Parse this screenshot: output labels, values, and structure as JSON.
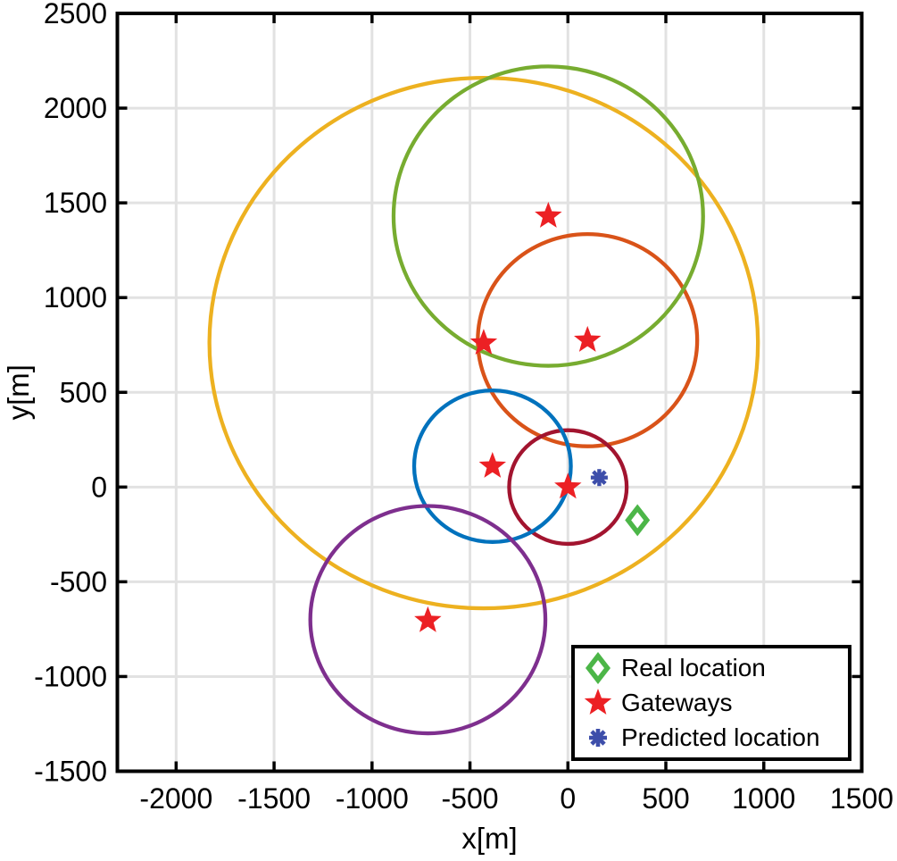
{
  "figure": {
    "background": "#FFFFFF",
    "grid_color": "#E2E2E2",
    "axis_color": "#000000"
  },
  "chart_data": {
    "type": "scatter",
    "title": "",
    "xlabel": "x[m]",
    "ylabel": "y[m]",
    "xlim": [
      -2300,
      1500
    ],
    "ylim": [
      -1500,
      2500
    ],
    "x_ticks": [
      -2000,
      -1500,
      -1000,
      -500,
      0,
      500,
      1000,
      1500
    ],
    "y_ticks": [
      -1500,
      -1000,
      -500,
      0,
      500,
      1000,
      1500,
      2000,
      2500
    ],
    "grid": true,
    "legend_position": "bottom-right",
    "gateway_circles": [
      {
        "cx": -430,
        "cy": 760,
        "r": 1400,
        "color": "#EDB120",
        "name": "yellow-range-circle"
      },
      {
        "cx": 100,
        "cy": 775,
        "r": 560,
        "color": "#D95319",
        "name": "orange-range-circle"
      },
      {
        "cx": -100,
        "cy": 1430,
        "r": 790,
        "color": "#77AC30",
        "name": "green-range-circle"
      },
      {
        "cx": 0,
        "cy": 0,
        "r": 300,
        "color": "#A2142F",
        "name": "darkred-range-circle"
      },
      {
        "cx": -385,
        "cy": 110,
        "r": 400,
        "color": "#0072BD",
        "name": "blue-range-circle"
      },
      {
        "cx": -715,
        "cy": -700,
        "r": 600,
        "color": "#7E2F8E",
        "name": "purple-range-circle"
      }
    ],
    "gateways": {
      "color": "#EC2024",
      "points": [
        {
          "x": -100,
          "y": 1430
        },
        {
          "x": -430,
          "y": 760
        },
        {
          "x": 100,
          "y": 775
        },
        {
          "x": -385,
          "y": 110
        },
        {
          "x": 0,
          "y": 0
        },
        {
          "x": -715,
          "y": -705
        }
      ]
    },
    "real_location": {
      "x": 355,
      "y": -175,
      "color": "#4CB648"
    },
    "predicted_location": {
      "x": 160,
      "y": 50,
      "color": "#3D4EAA"
    },
    "legend": {
      "items": [
        {
          "marker": "diamond",
          "color": "#4CB648",
          "label": "Real location"
        },
        {
          "marker": "star",
          "color": "#EC2024",
          "label": "Gateways"
        },
        {
          "marker": "asterisk",
          "color": "#3D4EAA",
          "label": "Predicted location"
        }
      ]
    }
  }
}
